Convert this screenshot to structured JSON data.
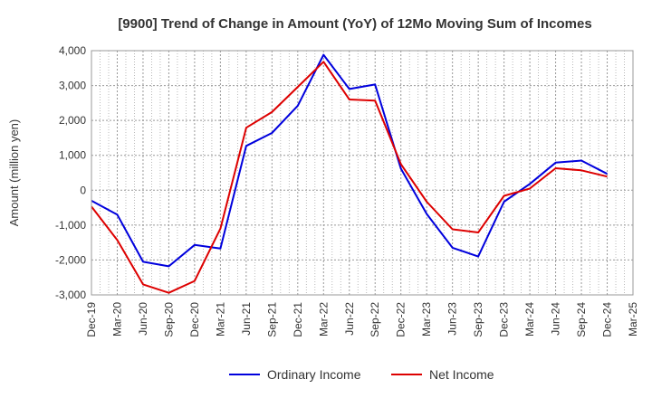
{
  "chart_data": {
    "type": "line",
    "title": "[9900]  Trend of Change in Amount (YoY) of 12Mo Moving Sum of Incomes",
    "xlabel": "",
    "ylabel": "Amount (million yen)",
    "ylim": [
      -3000,
      4000
    ],
    "yticks": [
      4000,
      3000,
      2000,
      1000,
      0,
      -1000,
      -2000,
      -3000
    ],
    "ytick_labels": [
      "4,000",
      "3,000",
      "2,000",
      "1,000",
      "0",
      "-1,000",
      "-2,000",
      "-3,000"
    ],
    "categories": [
      "Dec-19",
      "Mar-20",
      "Jun-20",
      "Sep-20",
      "Dec-20",
      "Mar-21",
      "Jun-21",
      "Sep-21",
      "Dec-21",
      "Mar-22",
      "Jun-22",
      "Sep-22",
      "Dec-22",
      "Mar-23",
      "Jun-23",
      "Sep-23",
      "Dec-23",
      "Mar-24",
      "Jun-24",
      "Sep-24",
      "Dec-24",
      "Mar-25"
    ],
    "grid": true,
    "legend": "bottom-center",
    "series": [
      {
        "name": "Ordinary Income",
        "color": "#0000dd",
        "values": [
          -300,
          -700,
          -2050,
          -2180,
          -1570,
          -1670,
          1270,
          1640,
          2420,
          3880,
          2900,
          3030,
          620,
          -680,
          -1650,
          -1900,
          -330,
          180,
          790,
          850,
          470,
          null
        ]
      },
      {
        "name": "Net Income",
        "color": "#dd0000",
        "values": [
          -470,
          -1430,
          -2700,
          -2940,
          -2600,
          -1100,
          1790,
          2240,
          2960,
          3680,
          2600,
          2570,
          750,
          -330,
          -1120,
          -1210,
          -160,
          50,
          630,
          570,
          390,
          null
        ]
      }
    ]
  }
}
